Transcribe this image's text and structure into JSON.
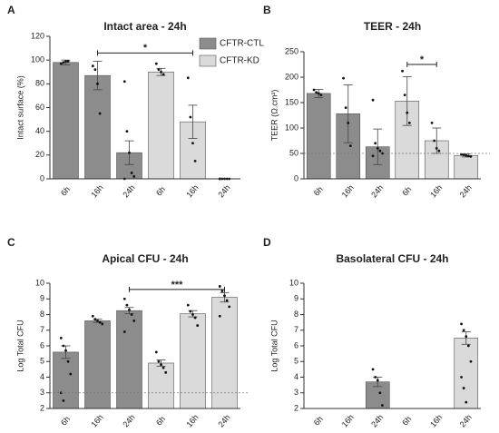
{
  "chart_data": [
    {
      "type": "bar",
      "panel": "A",
      "title": "Intact area - 24h",
      "ylabel": "Intact surface (%)",
      "categories": [
        "6h",
        "16h",
        "24h",
        "6h",
        "16h",
        "24h"
      ],
      "ylim": [
        0,
        120
      ],
      "yticks": [
        0,
        20,
        40,
        60,
        80,
        100,
        120
      ],
      "series": [
        {
          "name": "CFTR-CTL",
          "color": "#8c8c8c",
          "values": [
            98,
            87,
            22,
            null,
            null,
            null
          ],
          "errors": [
            2,
            12,
            10,
            null,
            null,
            null
          ],
          "points": [
            [
              97,
              98,
              99,
              99
            ],
            [
              95,
              92,
              80,
              55
            ],
            [
              82,
              40,
              22,
              5,
              2,
              0
            ],
            null,
            null,
            null
          ]
        },
        {
          "name": "CFTR-KD",
          "color": "#dadada",
          "values": [
            null,
            null,
            null,
            90,
            48,
            0
          ],
          "errors": [
            null,
            null,
            null,
            3,
            14,
            0
          ],
          "points": [
            null,
            null,
            null,
            [
              97,
              92,
              90,
              88
            ],
            [
              85,
              52,
              30,
              15
            ],
            [
              0,
              0,
              0,
              0,
              0,
              0
            ]
          ]
        }
      ],
      "annotation": {
        "text": "*",
        "value": 106,
        "between": [
          1,
          4
        ]
      }
    },
    {
      "type": "bar",
      "panel": "B",
      "title": "TEER - 24h",
      "ylabel": "TEER (Ω.cm²)",
      "categories": [
        "6h",
        "16h",
        "24h",
        "6h",
        "16h",
        "24h"
      ],
      "ylim": [
        0,
        250
      ],
      "yticks": [
        0,
        50,
        100,
        150,
        200,
        250
      ],
      "refline": 50,
      "series": [
        {
          "color": "#8c8c8c",
          "values": [
            168,
            128,
            63,
            null,
            null,
            null
          ],
          "errors": [
            8,
            57,
            35,
            null,
            null,
            null
          ],
          "points": [
            [
              175,
              170,
              168,
              165
            ],
            [
              198,
              140,
              110,
              65
            ],
            [
              155,
              70,
              60,
              55,
              50,
              45
            ],
            null,
            null,
            null
          ]
        },
        {
          "color": "#dadada",
          "values": [
            null,
            null,
            null,
            153,
            75,
            46
          ],
          "errors": [
            null,
            null,
            null,
            48,
            25,
            3
          ],
          "points": [
            null,
            null,
            null,
            [
              212,
              165,
              130,
              110
            ],
            [
              110,
              75,
              60,
              55
            ],
            [
              48,
              47,
              46,
              45,
              44
            ]
          ]
        }
      ],
      "annotation": {
        "text": "*",
        "value": 225,
        "between": [
          3,
          4
        ]
      }
    },
    {
      "type": "bar",
      "panel": "C",
      "title": "Apical CFU - 24h",
      "ylabel": "Log Total CFU",
      "categories": [
        "6h",
        "16h",
        "24h",
        "6h",
        "16h",
        "24h"
      ],
      "ylim": [
        2,
        10
      ],
      "yticks": [
        2,
        3,
        4,
        5,
        6,
        7,
        8,
        9,
        10
      ],
      "refline": 3,
      "series": [
        {
          "color": "#8c8c8c",
          "values": [
            5.6,
            7.6,
            8.25,
            null,
            null,
            null
          ],
          "errors": [
            0.4,
            0.1,
            0.2,
            null,
            null,
            null
          ],
          "points": [
            [
              6.5,
              6,
              5.7,
              5,
              4.2,
              3,
              2.5
            ],
            [
              7.9,
              7.7,
              7.6,
              7.5,
              7.4
            ],
            [
              9,
              8.6,
              8.3,
              8,
              7.6,
              6.9
            ],
            null,
            null,
            null
          ]
        },
        {
          "color": "#dadada",
          "values": [
            null,
            null,
            null,
            4.9,
            8.05,
            9.1
          ],
          "errors": [
            null,
            null,
            null,
            0.2,
            0.2,
            0.3
          ],
          "points": [
            null,
            null,
            null,
            [
              5.6,
              5,
              4.8,
              4.6,
              4.3
            ],
            [
              8.6,
              8.2,
              8,
              7.8,
              7.3
            ],
            [
              9.8,
              9.5,
              9.2,
              8.9,
              8.5,
              7.9
            ]
          ]
        }
      ],
      "annotation": {
        "text": "***",
        "value": 9.6,
        "between": [
          2,
          5
        ]
      }
    },
    {
      "type": "bar",
      "panel": "D",
      "title": "Basolateral CFU - 24h",
      "ylabel": "Log Total CFU",
      "categories": [
        "6h",
        "16h",
        "24h",
        "6h",
        "16h",
        "24h"
      ],
      "ylim": [
        2,
        10
      ],
      "yticks": [
        2,
        3,
        4,
        5,
        6,
        7,
        8,
        9,
        10
      ],
      "series": [
        {
          "color": "#8c8c8c",
          "values": [
            null,
            null,
            3.7,
            null,
            null,
            null
          ],
          "errors": [
            null,
            null,
            0.3,
            null,
            null,
            null
          ],
          "points": [
            null,
            null,
            [
              4.5,
              4,
              3.8,
              3,
              2.2
            ],
            null,
            null,
            null
          ]
        },
        {
          "color": "#dadada",
          "values": [
            null,
            null,
            null,
            null,
            null,
            6.5
          ],
          "errors": [
            null,
            null,
            null,
            null,
            null,
            0.4
          ],
          "points": [
            null,
            null,
            null,
            null,
            null,
            [
              7.4,
              7,
              6.6,
              6,
              5,
              4,
              3.3,
              2.4
            ]
          ]
        }
      ]
    }
  ]
}
